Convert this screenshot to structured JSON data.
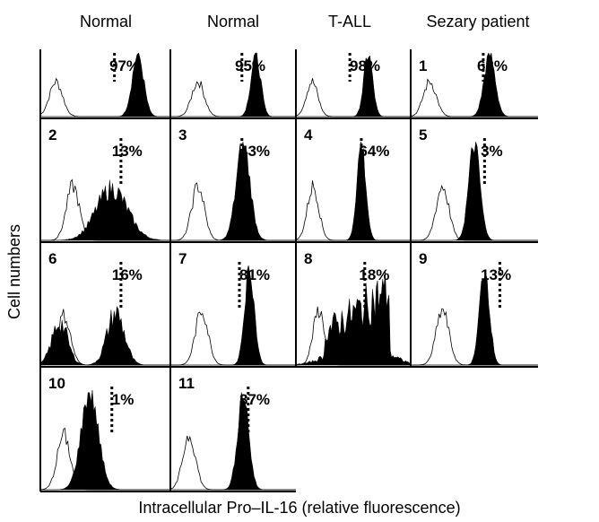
{
  "chart_data": {
    "type": "histogram-grid",
    "column_headers": [
      "Normal",
      "Normal",
      "T-ALL",
      "Sezary patient"
    ],
    "ylabel": "Cell numbers",
    "xlabel": "Intracellular Pro–IL-16 (relative fluorescence)",
    "panels": [
      {
        "id": "",
        "percent": "97%",
        "control_peak": 0.12,
        "stain_peak": 0.75,
        "threshold": 0.57,
        "stain_width": 0.08,
        "stain_shape": "unimodal"
      },
      {
        "id": "",
        "percent": "95%",
        "control_peak": 0.22,
        "stain_peak": 0.68,
        "threshold": 0.57,
        "stain_width": 0.07,
        "stain_shape": "unimodal"
      },
      {
        "id": "",
        "percent": "98%",
        "control_peak": 0.14,
        "stain_peak": 0.63,
        "threshold": 0.47,
        "stain_width": 0.07,
        "stain_shape": "unimodal"
      },
      {
        "id": "1",
        "percent": "63%",
        "control_peak": 0.15,
        "stain_peak": 0.62,
        "threshold": 0.57,
        "stain_width": 0.08,
        "stain_shape": "unimodal"
      },
      {
        "id": "2",
        "percent": "13%",
        "control_peak": 0.25,
        "stain_peak": 0.55,
        "threshold": 0.62,
        "stain_width": 0.12,
        "stain_shape": "broad"
      },
      {
        "id": "3",
        "percent": "43%",
        "control_peak": 0.22,
        "stain_peak": 0.58,
        "threshold": 0.57,
        "stain_width": 0.1,
        "stain_shape": "unimodal"
      },
      {
        "id": "4",
        "percent": "64%",
        "control_peak": 0.15,
        "stain_peak": 0.57,
        "threshold": 0.57,
        "stain_width": 0.07,
        "stain_shape": "unimodal"
      },
      {
        "id": "5",
        "percent": "3%",
        "control_peak": 0.25,
        "stain_peak": 0.5,
        "threshold": 0.58,
        "stain_width": 0.08,
        "stain_shape": "unimodal"
      },
      {
        "id": "6",
        "percent": "16%",
        "control_peak": 0.18,
        "stain_peak": 0.58,
        "threshold": 0.62,
        "stain_width": 0.11,
        "stain_shape": "bimodal"
      },
      {
        "id": "7",
        "percent": "81%",
        "control_peak": 0.25,
        "stain_peak": 0.63,
        "threshold": 0.55,
        "stain_width": 0.07,
        "stain_shape": "unimodal"
      },
      {
        "id": "8",
        "percent": "18%",
        "control_peak": 0.2,
        "stain_peak": 0.55,
        "threshold": 0.6,
        "stain_width": 0.25,
        "stain_shape": "flat"
      },
      {
        "id": "9",
        "percent": "13%",
        "control_peak": 0.25,
        "stain_peak": 0.58,
        "threshold": 0.7,
        "stain_width": 0.07,
        "stain_shape": "unimodal"
      },
      {
        "id": "10",
        "percent": "1%",
        "control_peak": 0.18,
        "stain_peak": 0.38,
        "threshold": 0.55,
        "stain_width": 0.12,
        "stain_shape": "unimodal"
      },
      {
        "id": "11",
        "percent": "37%",
        "control_peak": 0.15,
        "stain_peak": 0.58,
        "threshold": 0.62,
        "stain_width": 0.08,
        "stain_shape": "unimodal"
      }
    ],
    "colors": {
      "stain_fill": "#000000",
      "control_line": "#000000",
      "background": "#ffffff"
    }
  }
}
